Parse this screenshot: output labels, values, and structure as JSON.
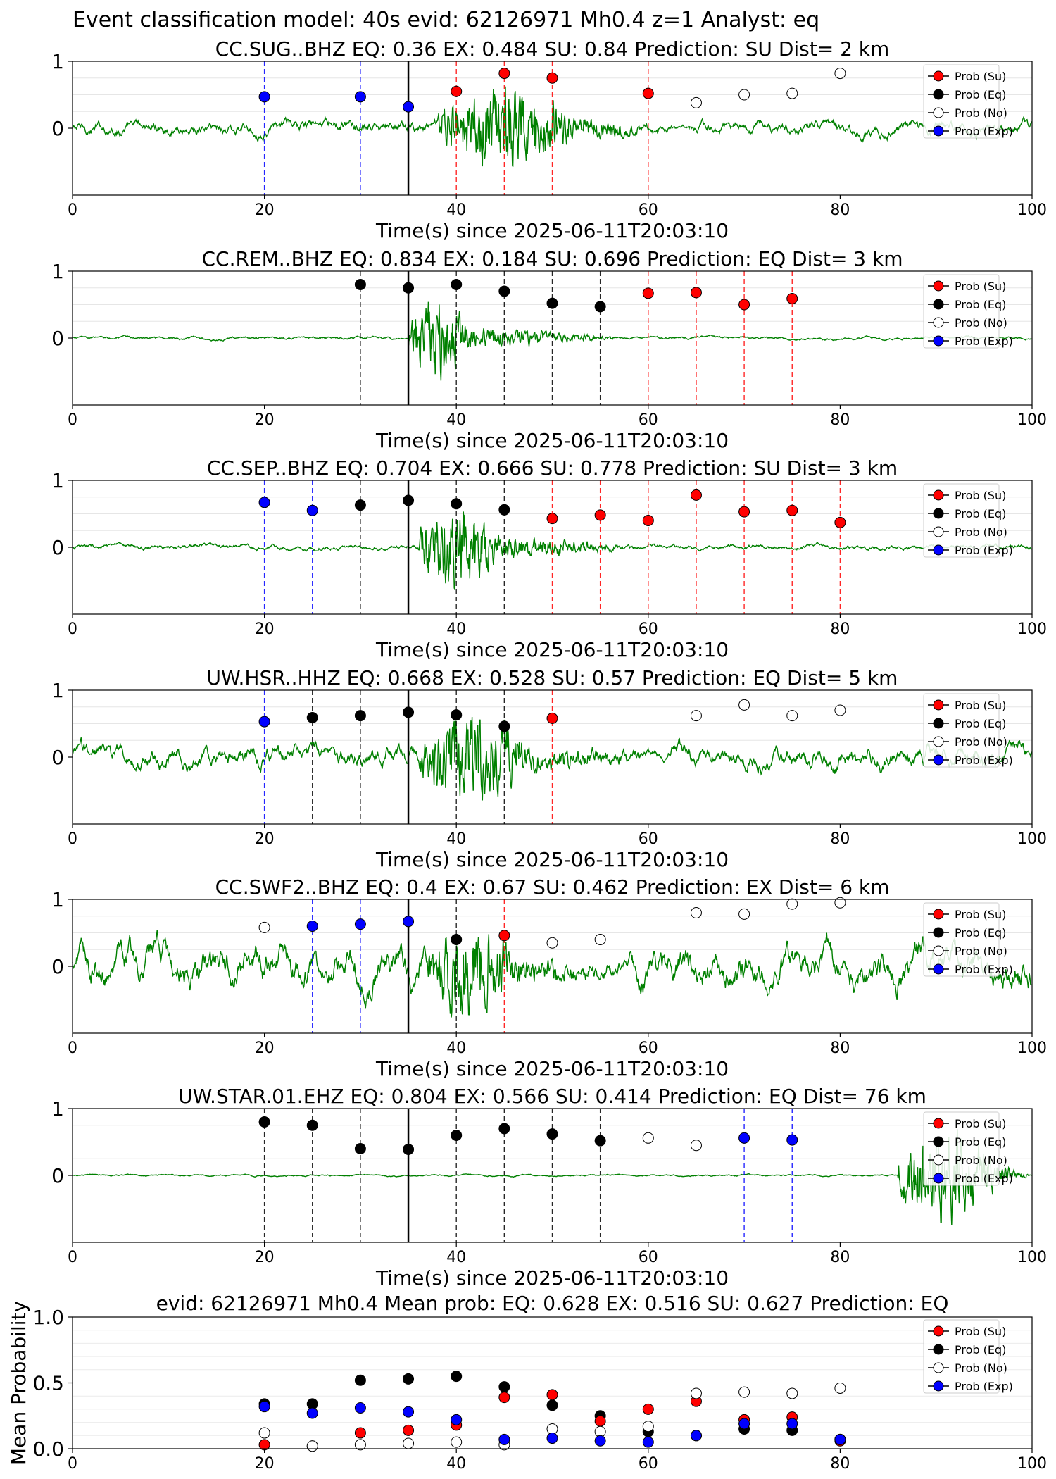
{
  "figure": {
    "suptitle": "Event classification model: 40s evid: 62126971 Mh0.4 z=1 Analyst: eq",
    "origin_line_x": 35
  },
  "legend": {
    "entries": [
      {
        "label": "Prob (Su)",
        "face": "#ff0000"
      },
      {
        "label": "Prob (Eq)",
        "face": "#000000"
      },
      {
        "label": "Prob (No)",
        "face": "#ffffff"
      },
      {
        "label": "Prob (Exp)",
        "face": "#0000ff"
      }
    ]
  },
  "colors": {
    "trace": "#008000",
    "su": "#ff0000",
    "eq": "#000000",
    "no": "#ffffff",
    "exp": "#0000ff"
  },
  "chart_data": [
    {
      "type": "line",
      "title": "CC.SUG..BHZ   EQ: 0.36  EX: 0.484  SU: 0.84   Prediction: SU    Dist= 2 km",
      "xlabel": "Time(s) since 2025-06-11T20:03:10",
      "xlim": [
        0,
        100
      ],
      "ylim": [
        -1,
        1
      ],
      "xticks": [
        0,
        20,
        40,
        60,
        80,
        100
      ],
      "yticks": [
        0,
        1
      ],
      "waveform": {
        "noise": 0.09,
        "peak": 0.9,
        "t0": 38,
        "t1": 52,
        "burst_end": 64
      },
      "points": [
        {
          "x": 20,
          "y": 0.47,
          "cls": "exp"
        },
        {
          "x": 30,
          "y": 0.47,
          "cls": "exp"
        },
        {
          "x": 35,
          "y": 0.32,
          "cls": "exp"
        },
        {
          "x": 40,
          "y": 0.55,
          "cls": "su"
        },
        {
          "x": 45,
          "y": 0.82,
          "cls": "su"
        },
        {
          "x": 50,
          "y": 0.75,
          "cls": "su"
        },
        {
          "x": 60,
          "y": 0.52,
          "cls": "su"
        },
        {
          "x": 65,
          "y": 0.38,
          "cls": "no"
        },
        {
          "x": 70,
          "y": 0.5,
          "cls": "no"
        },
        {
          "x": 75,
          "y": 0.52,
          "cls": "no"
        },
        {
          "x": 80,
          "y": 0.82,
          "cls": "no"
        }
      ]
    },
    {
      "type": "line",
      "title": "CC.REM..BHZ   EQ: 0.834  EX: 0.184  SU: 0.696   Prediction: EQ    Dist= 3 km",
      "xlabel": "Time(s) since 2025-06-11T20:03:10",
      "xlim": [
        0,
        100
      ],
      "ylim": [
        -1,
        1
      ],
      "xticks": [
        0,
        20,
        40,
        60,
        80,
        100
      ],
      "yticks": [
        0,
        1
      ],
      "waveform": {
        "noise": 0.02,
        "peak": 0.9,
        "t0": 35,
        "t1": 41,
        "burst_end": 58
      },
      "points": [
        {
          "x": 30,
          "y": 0.8,
          "cls": "eq"
        },
        {
          "x": 35,
          "y": 0.75,
          "cls": "eq"
        },
        {
          "x": 40,
          "y": 0.8,
          "cls": "eq"
        },
        {
          "x": 45,
          "y": 0.7,
          "cls": "eq"
        },
        {
          "x": 50,
          "y": 0.52,
          "cls": "eq"
        },
        {
          "x": 55,
          "y": 0.47,
          "cls": "eq"
        },
        {
          "x": 60,
          "y": 0.67,
          "cls": "su"
        },
        {
          "x": 65,
          "y": 0.68,
          "cls": "su"
        },
        {
          "x": 70,
          "y": 0.5,
          "cls": "su"
        },
        {
          "x": 75,
          "y": 0.59,
          "cls": "su"
        }
      ]
    },
    {
      "type": "line",
      "title": "CC.SEP..BHZ   EQ: 0.704  EX: 0.666  SU: 0.778   Prediction: SU    Dist= 3 km",
      "xlabel": "Time(s) since 2025-06-11T20:03:10",
      "xlim": [
        0,
        100
      ],
      "ylim": [
        -1,
        1
      ],
      "xticks": [
        0,
        20,
        40,
        60,
        80,
        100
      ],
      "yticks": [
        0,
        1
      ],
      "waveform": {
        "noise": 0.035,
        "peak": 0.95,
        "t0": 36,
        "t1": 44,
        "burst_end": 60
      },
      "points": [
        {
          "x": 20,
          "y": 0.67,
          "cls": "exp"
        },
        {
          "x": 25,
          "y": 0.55,
          "cls": "exp"
        },
        {
          "x": 30,
          "y": 0.63,
          "cls": "eq"
        },
        {
          "x": 35,
          "y": 0.7,
          "cls": "eq"
        },
        {
          "x": 40,
          "y": 0.65,
          "cls": "eq"
        },
        {
          "x": 45,
          "y": 0.56,
          "cls": "eq"
        },
        {
          "x": 50,
          "y": 0.43,
          "cls": "su"
        },
        {
          "x": 55,
          "y": 0.48,
          "cls": "su"
        },
        {
          "x": 60,
          "y": 0.4,
          "cls": "su"
        },
        {
          "x": 65,
          "y": 0.78,
          "cls": "su"
        },
        {
          "x": 70,
          "y": 0.53,
          "cls": "su"
        },
        {
          "x": 75,
          "y": 0.55,
          "cls": "su"
        },
        {
          "x": 80,
          "y": 0.37,
          "cls": "su"
        }
      ]
    },
    {
      "type": "line",
      "title": "UW.HSR..HHZ   EQ: 0.668  EX: 0.528  SU: 0.57   Prediction: EQ    Dist= 5 km",
      "xlabel": "Time(s) since 2025-06-11T20:03:10",
      "xlim": [
        0,
        100
      ],
      "ylim": [
        -1,
        1
      ],
      "xticks": [
        0,
        20,
        40,
        60,
        80,
        100
      ],
      "yticks": [
        0,
        1
      ],
      "waveform": {
        "noise": 0.15,
        "peak": 0.95,
        "t0": 36,
        "t1": 47,
        "burst_end": 62
      },
      "points": [
        {
          "x": 20,
          "y": 0.53,
          "cls": "exp"
        },
        {
          "x": 25,
          "y": 0.59,
          "cls": "eq"
        },
        {
          "x": 30,
          "y": 0.62,
          "cls": "eq"
        },
        {
          "x": 35,
          "y": 0.67,
          "cls": "eq"
        },
        {
          "x": 40,
          "y": 0.63,
          "cls": "eq"
        },
        {
          "x": 45,
          "y": 0.46,
          "cls": "eq"
        },
        {
          "x": 50,
          "y": 0.58,
          "cls": "su"
        },
        {
          "x": 65,
          "y": 0.62,
          "cls": "no"
        },
        {
          "x": 70,
          "y": 0.78,
          "cls": "no"
        },
        {
          "x": 75,
          "y": 0.62,
          "cls": "no"
        },
        {
          "x": 80,
          "y": 0.7,
          "cls": "no"
        }
      ]
    },
    {
      "type": "line",
      "title": "CC.SWF2..BHZ   EQ: 0.4  EX: 0.67  SU: 0.462   Prediction: EX    Dist= 6 km",
      "xlabel": "Time(s) since 2025-06-11T20:03:10",
      "xlim": [
        0,
        100
      ],
      "ylim": [
        -1,
        1
      ],
      "xticks": [
        0,
        20,
        40,
        60,
        80,
        100
      ],
      "yticks": [
        0,
        1
      ],
      "waveform": {
        "noise": 0.26,
        "peak": 0.95,
        "t0": 37,
        "t1": 46,
        "burst_end": 58
      },
      "points": [
        {
          "x": 20,
          "y": 0.58,
          "cls": "no"
        },
        {
          "x": 25,
          "y": 0.6,
          "cls": "exp"
        },
        {
          "x": 30,
          "y": 0.63,
          "cls": "exp"
        },
        {
          "x": 35,
          "y": 0.67,
          "cls": "exp"
        },
        {
          "x": 40,
          "y": 0.4,
          "cls": "eq"
        },
        {
          "x": 45,
          "y": 0.46,
          "cls": "su"
        },
        {
          "x": 50,
          "y": 0.35,
          "cls": "no"
        },
        {
          "x": 55,
          "y": 0.4,
          "cls": "no"
        },
        {
          "x": 65,
          "y": 0.8,
          "cls": "no"
        },
        {
          "x": 70,
          "y": 0.78,
          "cls": "no"
        },
        {
          "x": 75,
          "y": 0.93,
          "cls": "no"
        },
        {
          "x": 80,
          "y": 0.95,
          "cls": "no"
        }
      ]
    },
    {
      "type": "line",
      "title": "UW.STAR.01.EHZ   EQ: 0.804  EX: 0.566  SU: 0.414   Prediction: EQ    Dist= 76 km",
      "xlabel": "Time(s) since 2025-06-11T20:03:10",
      "xlim": [
        0,
        100
      ],
      "ylim": [
        -1,
        1
      ],
      "xticks": [
        0,
        20,
        40,
        60,
        80,
        100
      ],
      "yticks": [
        0,
        1
      ],
      "waveform": {
        "noise": 0.012,
        "peak": 0.95,
        "t0": 86,
        "t1": 96,
        "burst_end": 100
      },
      "points": [
        {
          "x": 20,
          "y": 0.8,
          "cls": "eq"
        },
        {
          "x": 25,
          "y": 0.75,
          "cls": "eq"
        },
        {
          "x": 30,
          "y": 0.4,
          "cls": "eq"
        },
        {
          "x": 35,
          "y": 0.39,
          "cls": "eq"
        },
        {
          "x": 40,
          "y": 0.6,
          "cls": "eq"
        },
        {
          "x": 45,
          "y": 0.7,
          "cls": "eq"
        },
        {
          "x": 50,
          "y": 0.62,
          "cls": "eq"
        },
        {
          "x": 55,
          "y": 0.52,
          "cls": "eq"
        },
        {
          "x": 60,
          "y": 0.56,
          "cls": "no"
        },
        {
          "x": 65,
          "y": 0.45,
          "cls": "no"
        },
        {
          "x": 70,
          "y": 0.56,
          "cls": "exp"
        },
        {
          "x": 75,
          "y": 0.53,
          "cls": "exp"
        }
      ]
    },
    {
      "type": "scatter",
      "title": "evid: 62126971  Mh0.4   Mean prob:   EQ: 0.628  EX: 0.516  SU: 0.627   Prediction: EQ",
      "ylabel": "Mean Probability",
      "xlim": [
        0,
        100
      ],
      "ylim": [
        0,
        1
      ],
      "xticks": [
        0,
        20,
        40,
        60,
        80,
        100
      ],
      "yticks": [
        0.0,
        0.5,
        1.0
      ],
      "x": [
        20,
        25,
        30,
        35,
        40,
        45,
        50,
        55,
        60,
        65,
        70,
        75,
        80
      ],
      "series": [
        {
          "name": "Prob (Eq)",
          "cls": "eq",
          "values": [
            0.34,
            0.34,
            0.52,
            0.53,
            0.55,
            0.47,
            0.33,
            0.25,
            0.13,
            0.1,
            0.15,
            0.14,
            0.07
          ]
        },
        {
          "name": "Prob (Su)",
          "cls": "su",
          "values": [
            0.03,
            0.02,
            0.12,
            0.14,
            0.18,
            0.39,
            0.41,
            0.21,
            0.3,
            0.36,
            0.22,
            0.24,
            0.06
          ]
        },
        {
          "name": "Prob (No)",
          "cls": "no",
          "values": [
            0.12,
            0.02,
            0.03,
            0.04,
            0.05,
            0.03,
            0.15,
            0.13,
            0.17,
            0.42,
            0.43,
            0.42,
            0.46
          ]
        },
        {
          "name": "Prob (Exp)",
          "cls": "exp",
          "values": [
            0.32,
            0.27,
            0.31,
            0.28,
            0.22,
            0.07,
            0.08,
            0.06,
            0.05,
            0.1,
            0.19,
            0.19,
            0.07
          ]
        }
      ]
    }
  ]
}
